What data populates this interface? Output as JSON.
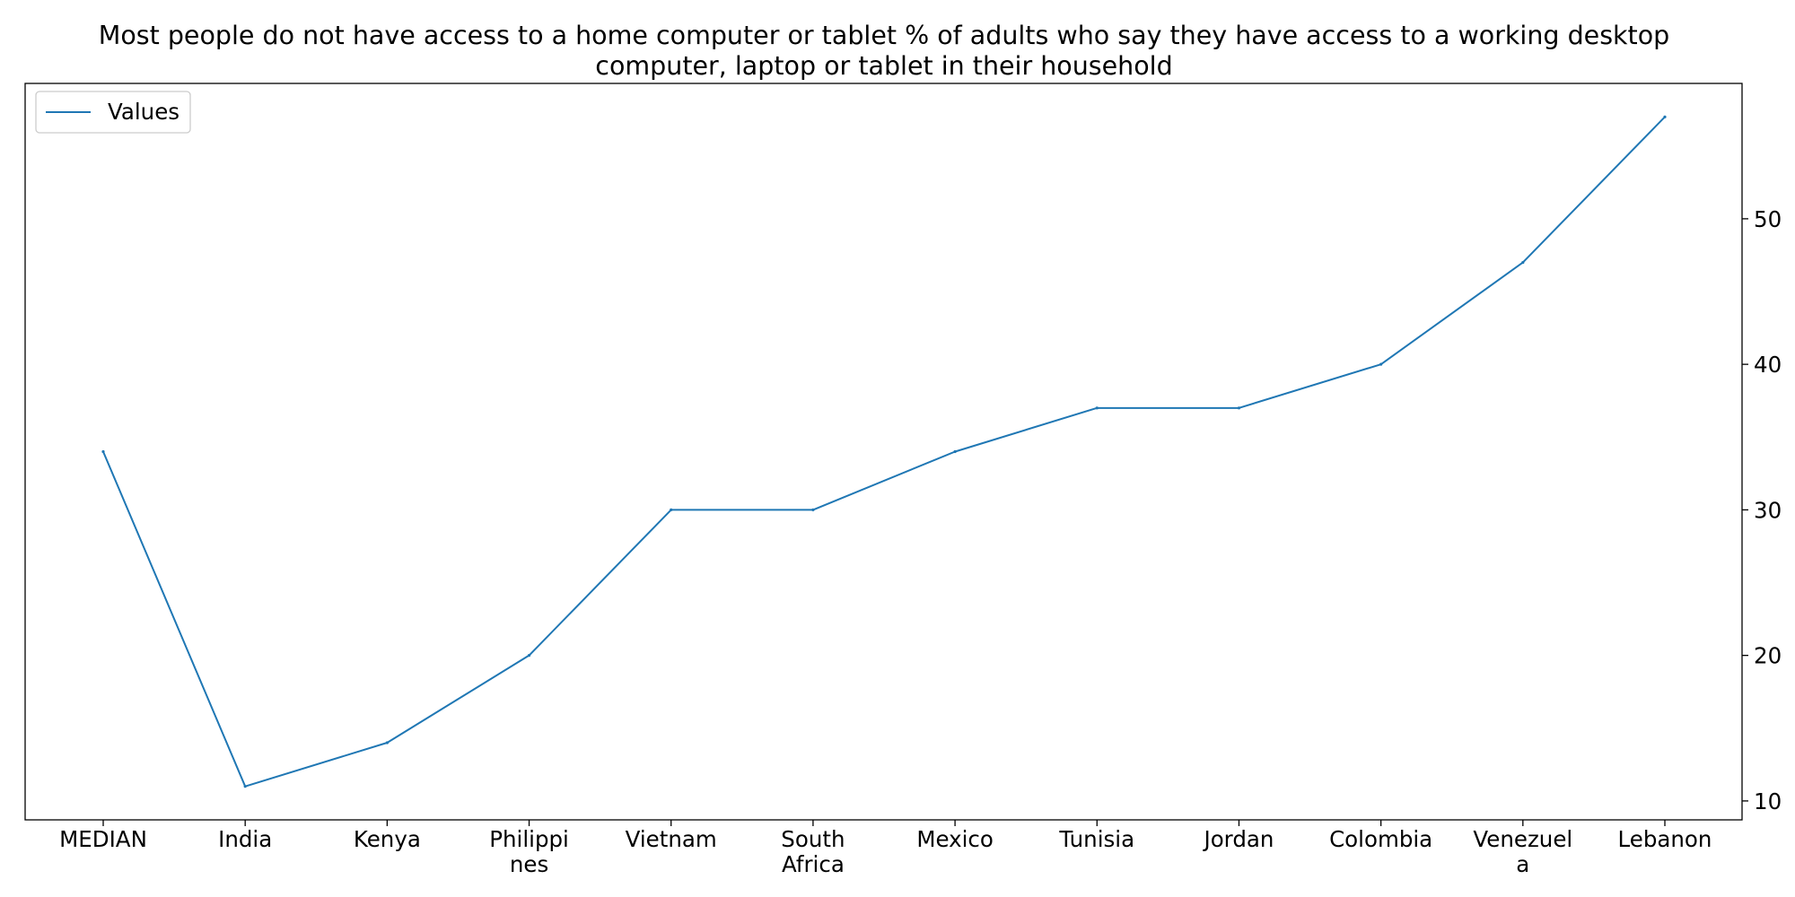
{
  "chart_data": {
    "type": "line",
    "title": "Most people do not have access to a home computer or tablet % of adults who say they have access to a working desktop computer, laptop or tablet in their household",
    "title_lines": [
      "Most people do not have access to a home computer or tablet % of adults who say they have access to a working desktop",
      "computer, laptop or tablet in their household"
    ],
    "xlabel": "",
    "ylabel": "",
    "categories": [
      "MEDIAN",
      "India",
      "Kenya",
      "Philippines",
      "Vietnam",
      "South Africa",
      "Mexico",
      "Tunisia",
      "Jordan",
      "Colombia",
      "Venezuela",
      "Lebanon"
    ],
    "category_labels": [
      [
        "MEDIAN"
      ],
      [
        "India"
      ],
      [
        "Kenya"
      ],
      [
        "Philippi",
        "nes"
      ],
      [
        "Vietnam"
      ],
      [
        "South",
        "Africa"
      ],
      [
        "Mexico"
      ],
      [
        "Tunisia"
      ],
      [
        "Jordan"
      ],
      [
        "Colombia"
      ],
      [
        "Venezuel",
        "a"
      ],
      [
        "Lebanon"
      ]
    ],
    "series": [
      {
        "name": "Values",
        "color": "#1f77b4",
        "values": [
          34,
          11,
          14,
          20,
          30,
          30,
          34,
          37,
          37,
          40,
          47,
          57
        ]
      }
    ],
    "yticks": [
      10,
      20,
      30,
      40,
      50
    ],
    "ylim": [
      8.7,
      59.3
    ],
    "y_axis_side": "right",
    "grid": false,
    "legend_position": "top-left"
  }
}
